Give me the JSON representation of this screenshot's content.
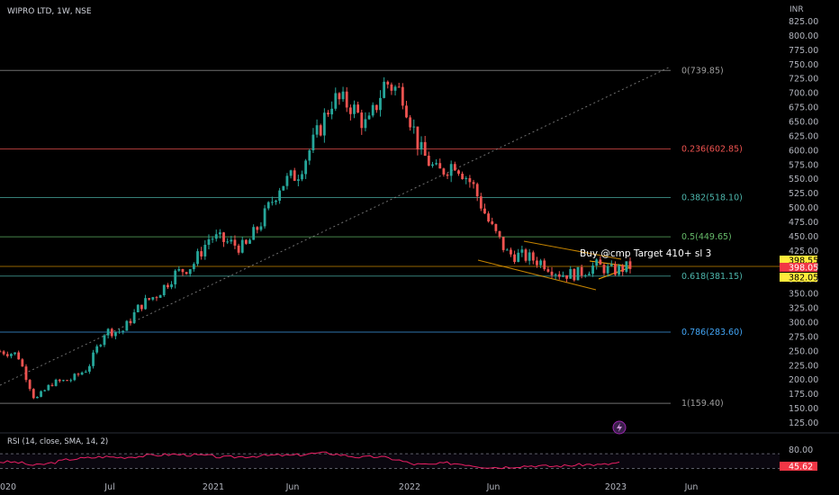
{
  "header": {
    "symbol_title": "WIPRO LTD, 1W, NSE",
    "currency": "INR"
  },
  "colors": {
    "background": "#000000",
    "up": "#26a69a",
    "down": "#ef5350",
    "grid": "#1c1c1c",
    "axis_text": "#b2b5be",
    "fib_teal": "#4db6ac",
    "fib_red": "#ef5350",
    "fib_blue": "#42a5f5",
    "fib_gray": "#9e9e9e",
    "fib_green": "#66bb6a",
    "rsi_line": "#e91e63",
    "badge_yellow": "#ffeb3b",
    "badge_red": "#f23645",
    "annotation": "#ffffff",
    "channel": "#f7a600"
  },
  "price_axis": {
    "ticks": [
      "825.00",
      "800.00",
      "775.00",
      "750.00",
      "725.00",
      "700.00",
      "675.00",
      "650.00",
      "625.00",
      "600.00",
      "575.00",
      "550.00",
      "525.00",
      "500.00",
      "475.00",
      "450.00",
      "425.00",
      "400.00",
      "375.00",
      "350.00",
      "325.00",
      "300.00",
      "275.00",
      "250.00",
      "225.00",
      "200.00",
      "175.00",
      "150.00",
      "125.00"
    ],
    "badges": [
      {
        "text": "398.55",
        "type": "yellow"
      },
      {
        "text": "398.05",
        "type": "red"
      },
      {
        "text": "382.05",
        "type": "yellow"
      }
    ]
  },
  "time_axis": {
    "labels": [
      "2020",
      "Jul",
      "2021",
      "Jun",
      "2022",
      "Jun",
      "2023",
      "Jun"
    ]
  },
  "fib_levels": [
    {
      "label": "0(739.85)",
      "value": 739.85,
      "color": "gray"
    },
    {
      "label": "0.236(602.85)",
      "value": 602.85,
      "color": "red"
    },
    {
      "label": "0.382(518.10)",
      "value": 518.1,
      "color": "teal"
    },
    {
      "label": "0.5(449.65)",
      "value": 449.65,
      "color": "green"
    },
    {
      "label": "0.618(381.15)",
      "value": 381.15,
      "color": "teal"
    },
    {
      "label": "0.786(283.60)",
      "value": 283.6,
      "color": "blue"
    },
    {
      "label": "1(159.40)",
      "value": 159.4,
      "color": "gray"
    }
  ],
  "annotation": {
    "text": "Buy @cmp Target 410+ sl 3"
  },
  "rsi_panel": {
    "label": "RSI (14, close, SMA, 14, 2)",
    "ticks": [
      "80.00"
    ],
    "current_badge": "45.62"
  },
  "chart_data": {
    "type": "candlestick",
    "ylim": [
      110,
      840
    ],
    "x_start": "2020-01",
    "x_end": "2023-07",
    "price_series": {
      "name": "",
      "time_points": [
        "2020-01",
        "2020-02",
        "2020-03",
        "2020-04",
        "2020-05",
        "2020-06",
        "2020-07",
        "2020-08",
        "2020-09",
        "2020-10",
        "2020-11",
        "2020-12",
        "2021-01",
        "2021-02",
        "2021-03",
        "2021-04",
        "2021-05",
        "2021-06",
        "2021-07",
        "2021-08",
        "2021-09",
        "2021-10",
        "2021-11",
        "2021-12",
        "2022-01",
        "2022-02",
        "2022-03",
        "2022-04",
        "2022-05",
        "2022-06",
        "2022-07",
        "2022-08",
        "2022-09",
        "2022-10",
        "2022-11",
        "2022-12",
        "2023-01"
      ],
      "values": [
        250,
        245,
        165,
        195,
        200,
        220,
        285,
        285,
        330,
        350,
        385,
        400,
        450,
        440,
        430,
        480,
        540,
        560,
        620,
        690,
        680,
        640,
        720,
        700,
        600,
        560,
        580,
        540,
        470,
        420,
        415,
        405,
        385,
        385,
        400,
        390,
        398
      ]
    },
    "rsi_series": {
      "name": "",
      "values": [
        48,
        47,
        38,
        45,
        55,
        58,
        62,
        60,
        63,
        66,
        68,
        67,
        65,
        60,
        62,
        64,
        66,
        65,
        70,
        72,
        66,
        60,
        62,
        55,
        42,
        40,
        45,
        42,
        35,
        33,
        36,
        38,
        36,
        38,
        41,
        40,
        46
      ]
    },
    "rsi_ylim": [
      20,
      90
    ],
    "rsi_current": 45.62
  }
}
